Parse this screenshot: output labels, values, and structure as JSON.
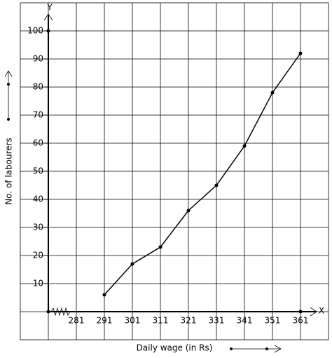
{
  "chart_data": {
    "type": "line",
    "xlabel": "Daily wage (in Rs)",
    "ylabel": "No. of labourers",
    "x_axis_name": "X",
    "y_axis_name": "Y",
    "x": [
      291,
      301,
      311,
      321,
      331,
      341,
      351,
      361
    ],
    "values": [
      6,
      17,
      23,
      36,
      45,
      59,
      78,
      92
    ],
    "color": "#000000",
    "xlim": [
      261,
      371
    ],
    "ylim": [
      -10,
      110
    ],
    "xticks": [
      281,
      291,
      301,
      311,
      321,
      331,
      341,
      351,
      361
    ],
    "yticks": [
      10,
      20,
      30,
      40,
      50,
      60,
      70,
      80,
      90,
      100
    ],
    "grid": true
  }
}
